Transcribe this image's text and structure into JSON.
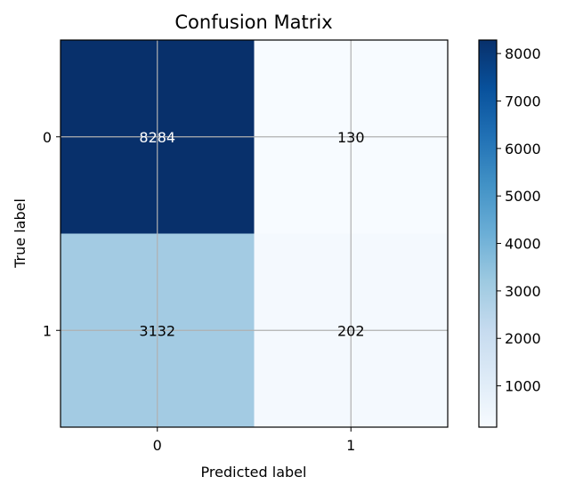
{
  "chart_data": {
    "type": "heatmap",
    "title": "Confusion Matrix",
    "xlabel": "Predicted label",
    "ylabel": "True label",
    "x_categories": [
      "0",
      "1"
    ],
    "y_categories": [
      "0",
      "1"
    ],
    "values": [
      [
        8284,
        130
      ],
      [
        3132,
        202
      ]
    ],
    "colorscale": "Blues",
    "vmin": 130,
    "vmax": 8284,
    "colorbar_ticks": [
      1000,
      2000,
      3000,
      4000,
      5000,
      6000,
      7000,
      8000
    ],
    "grid": true,
    "colors": {
      "cell_0_0": "#08306b",
      "cell_0_1": "#f7fbff",
      "cell_1_0": "#a3cbe3",
      "cell_1_1": "#f4f9fe",
      "label_on_dark": "#ffffff",
      "label_on_light": "#000000",
      "grid": "#b0b0b0"
    }
  }
}
